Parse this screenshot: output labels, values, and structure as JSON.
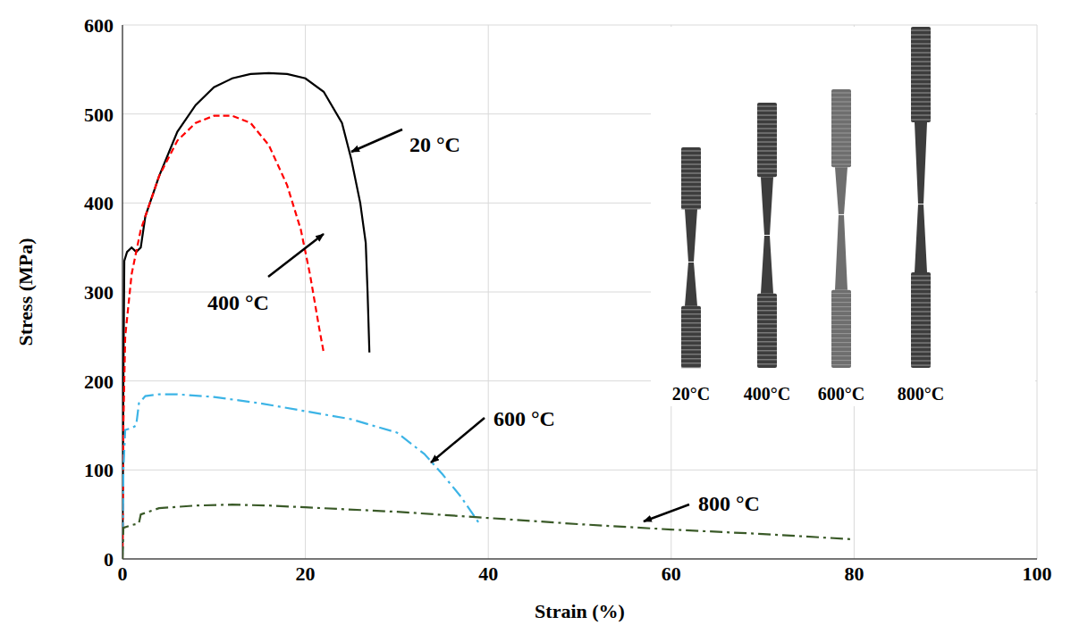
{
  "chart_data": {
    "type": "line",
    "x_label": "Strain (%)",
    "y_label": "Stress (MPa)",
    "xlim": [
      0,
      100
    ],
    "xticks": [
      0,
      20,
      40,
      60,
      80,
      100
    ],
    "ylim": [
      0,
      600
    ],
    "yticks": [
      0,
      100,
      200,
      300,
      400,
      500,
      600
    ],
    "grid": true,
    "series": [
      {
        "name": "20 °C",
        "color": "#000000",
        "line_style": "solid",
        "x": [
          0,
          0.1,
          0.2,
          0.5,
          1,
          1.5,
          2,
          2.5,
          4,
          6,
          8,
          10,
          12,
          14,
          16,
          18,
          20,
          22,
          24,
          25,
          26,
          26.6,
          26.8,
          27
        ],
        "values": [
          0,
          200,
          335,
          345,
          350,
          345,
          350,
          385,
          430,
          480,
          510,
          530,
          540,
          545,
          546,
          545,
          540,
          525,
          490,
          450,
          400,
          355,
          300,
          232
        ]
      },
      {
        "name": "400 °C",
        "color": "#ff0000",
        "line_style": "dashed",
        "x": [
          0,
          0.1,
          0.3,
          1,
          2,
          4,
          6,
          8,
          10,
          12,
          14,
          16,
          18,
          19.5,
          20.5,
          21.5,
          22
        ],
        "values": [
          0,
          150,
          250,
          320,
          370,
          430,
          470,
          490,
          498,
          498,
          490,
          465,
          420,
          370,
          320,
          260,
          232
        ]
      },
      {
        "name": "600 °C",
        "color": "#3cb4e6",
        "line_style": "dashdot",
        "x": [
          0,
          0.1,
          0.3,
          1,
          1.5,
          1.8,
          2.5,
          4,
          6,
          10,
          15,
          20,
          25,
          30,
          33,
          35,
          37,
          39
        ],
        "values": [
          0,
          100,
          145,
          147,
          150,
          175,
          183,
          185,
          185,
          182,
          175,
          166,
          157,
          142,
          118,
          95,
          70,
          40
        ]
      },
      {
        "name": "800 °C",
        "color": "#3a5a28",
        "line_style": "dashdot",
        "x": [
          0,
          0.1,
          1,
          1.8,
          2,
          4,
          8,
          12,
          16,
          20,
          30,
          40,
          50,
          60,
          70,
          80
        ],
        "values": [
          0,
          35,
          38,
          40,
          50,
          57,
          60,
          61,
          60,
          58,
          53,
          46,
          39,
          33,
          28,
          22
        ]
      }
    ],
    "inset_labels": [
      "20°C",
      "400°C",
      "600°C",
      "800°C"
    ]
  }
}
